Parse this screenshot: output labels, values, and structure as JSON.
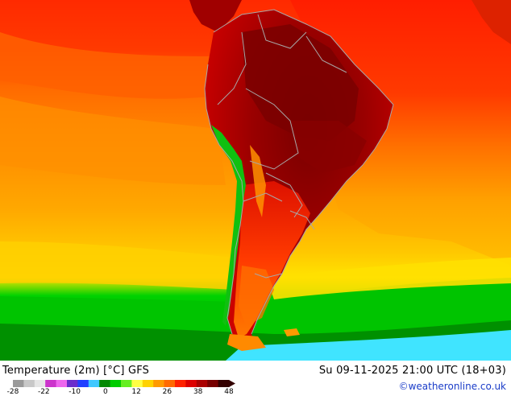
{
  "footer": {
    "title": "Temperature (2m) [°C] GFS",
    "datetime": "Su 09-11-2025 21:00 UTC (18+03)",
    "credit": "©weatheronline.co.uk"
  },
  "colorbar": {
    "ticks": [
      "-28",
      "-22",
      "-10",
      "0",
      "12",
      "26",
      "38",
      "48"
    ],
    "colors": [
      "#9a9a9a",
      "#c8c8c8",
      "#e6e6e6",
      "#cc33cc",
      "#ee66ee",
      "#6a2ccc",
      "#2040ff",
      "#40c8ff",
      "#008800",
      "#00cc00",
      "#66ee22",
      "#ffff44",
      "#ffd200",
      "#ff9a00",
      "#ff6a00",
      "#ff2200",
      "#dd0000",
      "#aa0000",
      "#770000",
      "#330000"
    ]
  },
  "map": {
    "region": "South America",
    "palette": {
      "ocean_warm": "#ff3a00",
      "ocean_mid": "#ff9000",
      "ocean_cool": "#ffc000",
      "cold_band": "#00d000",
      "coldest_band": "#40e8ff",
      "land_hot": "#aa0000",
      "land_very_hot": "#7a0000",
      "andes_cool": "#10c010",
      "borders": "#a8a8a8"
    }
  }
}
